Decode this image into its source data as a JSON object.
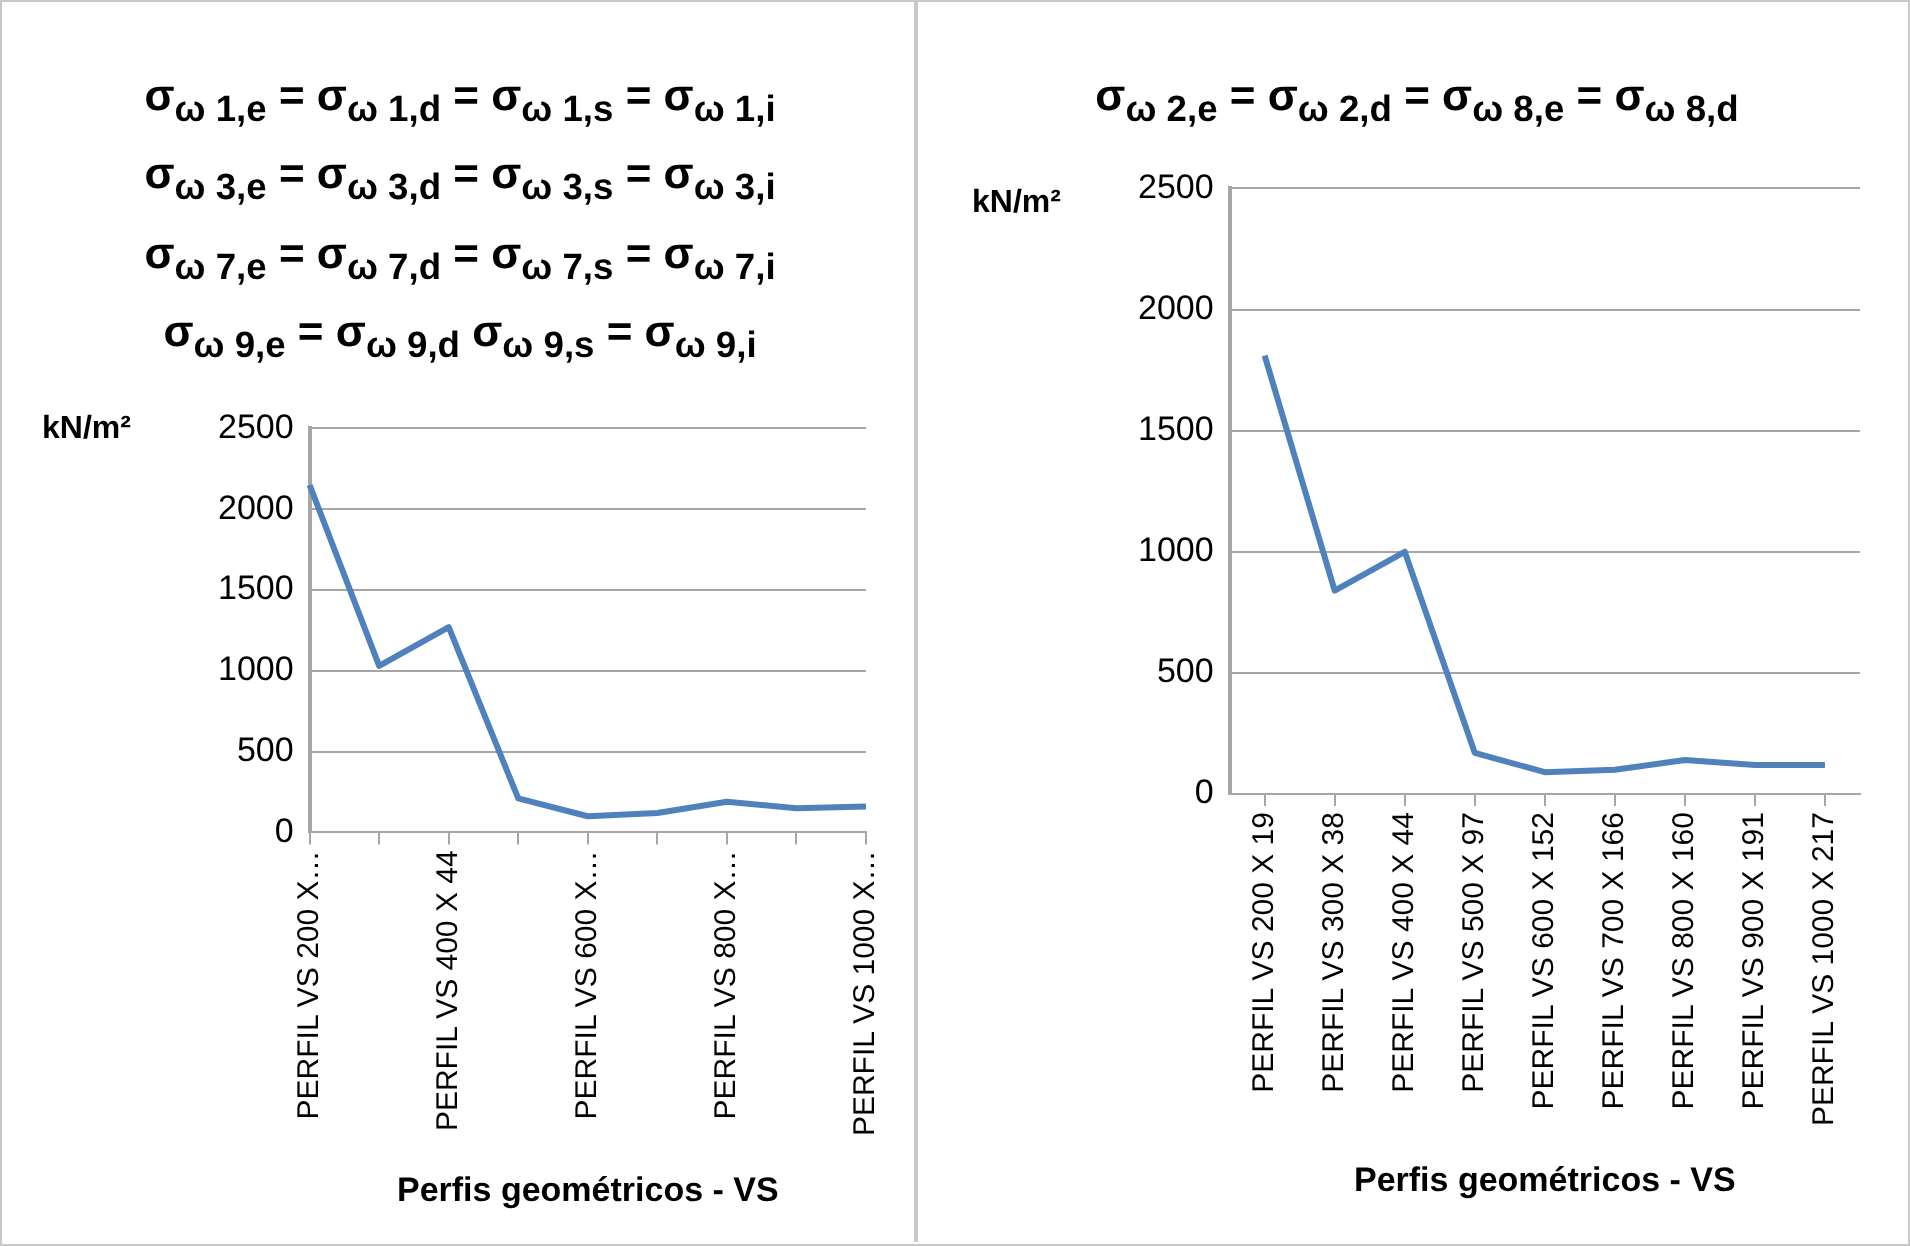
{
  "chart_data": [
    {
      "type": "line",
      "title": "σ$_{ω 1,e}$ = σ$_{ω 1,d}$ = σ$_{ω 1,s}$ = σ$_{ω 1,i}$\nσ$_{ω 3,e}$ = σ$_{ω 3,d}$ = σ$_{ω 3,s}$  = σ$_{ω 3,i}$\nσ$_{ω 7,e}$ = σ$_{ω 7,d}$ = σ$_{ω 7,s}$ = σ$_{ω 7,i}$\nσ$_{ω 9,e}$ = σ$_{ω 9,d}$    σ$_{ω 9,s}$ = σ$_{ω 9,i}$",
      "xlabel": "Perfis geométricos - VS",
      "ylabel": "kN/m²",
      "categories": [
        "PERFIL VS 200 X…",
        null,
        "PERFIL VS 400 X 44",
        null,
        "PERFIL VS 600 X…",
        null,
        "PERFIL VS 800 X…",
        null,
        "PERFIL VS 1000 X…"
      ],
      "series": [
        {
          "color": "#4f81bd",
          "values": [
            2150,
            1030,
            1270,
            210,
            100,
            120,
            190,
            150,
            160
          ]
        }
      ],
      "ylim": [
        0,
        2500
      ],
      "yticks": [
        0,
        500,
        1000,
        1500,
        2000,
        2500
      ],
      "grid": "y",
      "legend": false,
      "marker": "none",
      "line_style": "solid"
    },
    {
      "type": "line",
      "title": "σ$_{ω 2,e}$ = σ$_{ω 2,d}$ = σ$_{ω 8,e}$ = σ$_{ω 8,d}$",
      "xlabel": "Perfis geométricos - VS",
      "ylabel": "kN/m²",
      "categories": [
        "PERFIL VS 200 X 19",
        "PERFIL VS 300 X 38",
        "PERFIL VS 400 X 44",
        "PERFIL VS 500 X 97",
        "PERFIL VS 600 X 152",
        "PERFIL VS 700 X 166",
        "PERFIL VS 800 X 160",
        "PERFIL VS 900 X 191",
        "PERFIL VS 1000 X 217"
      ],
      "series": [
        {
          "color": "#4f81bd",
          "values": [
            1810,
            840,
            1000,
            170,
            90,
            100,
            140,
            120,
            120
          ]
        }
      ],
      "ylim": [
        0,
        2500
      ],
      "yticks": [
        0,
        500,
        1000,
        1500,
        2000,
        2500
      ],
      "grid": "y",
      "legend": false,
      "marker": "none",
      "line_style": "solid"
    }
  ]
}
